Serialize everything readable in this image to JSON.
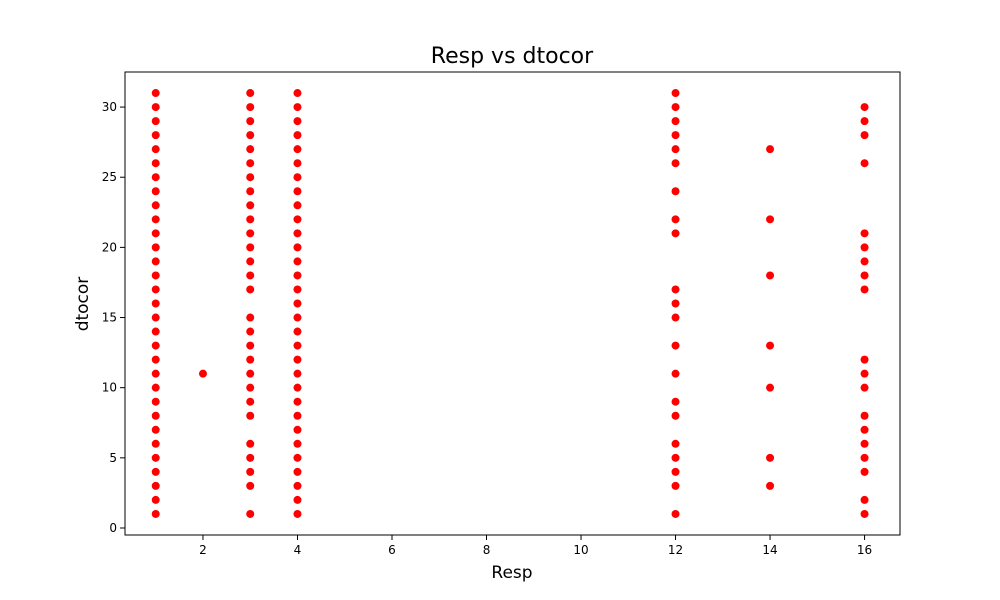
{
  "chart_data": {
    "type": "scatter",
    "title": "Resp vs dtocor",
    "xlabel": "Resp",
    "ylabel": "dtocor",
    "xlim": [
      0.35,
      16.75
    ],
    "ylim": [
      -0.5,
      32.5
    ],
    "xticks": [
      2,
      4,
      6,
      8,
      10,
      12,
      14,
      16
    ],
    "yticks": [
      0,
      5,
      10,
      15,
      20,
      25,
      30
    ],
    "xtick_labels": [
      "2",
      "4",
      "6",
      "8",
      "10",
      "12",
      "14",
      "16"
    ],
    "ytick_labels": [
      "0",
      "5",
      "10",
      "15",
      "20",
      "25",
      "30"
    ],
    "grid": false,
    "marker_color": "#ff0000",
    "groups": [
      {
        "x": 1,
        "y": [
          1,
          2,
          3,
          4,
          5,
          6,
          7,
          8,
          9,
          10,
          11,
          12,
          13,
          14,
          15,
          16,
          17,
          18,
          19,
          20,
          21,
          22,
          23,
          24,
          25,
          26,
          27,
          28,
          29,
          30,
          31
        ]
      },
      {
        "x": 2,
        "y": [
          11
        ]
      },
      {
        "x": 3,
        "y": [
          1,
          3,
          4,
          5,
          6,
          8,
          9,
          10,
          11,
          12,
          13,
          14,
          15,
          17,
          18,
          19,
          20,
          21,
          22,
          23,
          24,
          25,
          26,
          27,
          28,
          29,
          30,
          31
        ]
      },
      {
        "x": 4,
        "y": [
          1,
          2,
          3,
          4,
          5,
          6,
          7,
          8,
          9,
          10,
          11,
          12,
          13,
          14,
          15,
          16,
          17,
          18,
          19,
          20,
          21,
          22,
          23,
          24,
          25,
          26,
          27,
          28,
          29,
          30,
          31
        ]
      },
      {
        "x": 12,
        "y": [
          1,
          3,
          4,
          5,
          6,
          8,
          9,
          11,
          13,
          15,
          16,
          17,
          21,
          22,
          24,
          26,
          27,
          28,
          29,
          30,
          31
        ]
      },
      {
        "x": 14,
        "y": [
          3,
          5,
          10,
          13,
          18,
          22,
          27
        ]
      },
      {
        "x": 16,
        "y": [
          1,
          2,
          4,
          5,
          6,
          7,
          8,
          10,
          11,
          12,
          17,
          18,
          19,
          20,
          21,
          26,
          28,
          29,
          30
        ]
      }
    ]
  }
}
